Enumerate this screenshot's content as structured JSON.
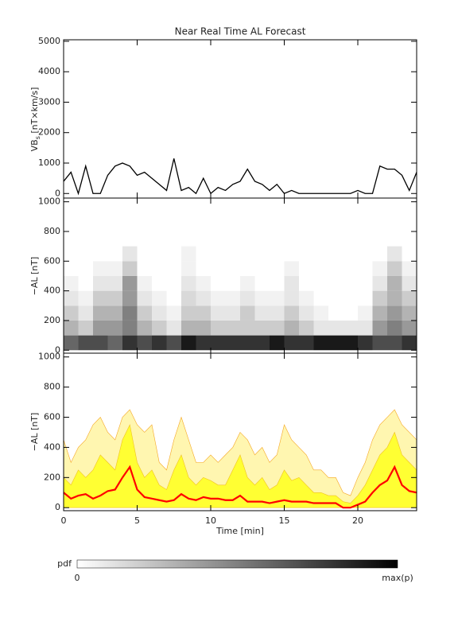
{
  "chart_data": [
    {
      "type": "line",
      "title": "Near Real Time AL Forecast",
      "ylabel_main": "VB",
      "ylabel_sub": "s",
      "ylabel_unit": "[nT×km/s]",
      "xlim": [
        0,
        24
      ],
      "xticks": [
        0,
        5,
        10,
        15,
        20
      ],
      "ylim": [
        -150,
        5050
      ],
      "yticks": [
        0,
        1000,
        2000,
        3000,
        4000,
        5000
      ],
      "color": "#000000",
      "x": [
        0,
        0.5,
        1,
        1.5,
        2,
        2.5,
        3,
        3.5,
        4,
        4.5,
        5,
        5.5,
        6,
        6.5,
        7,
        7.5,
        8,
        8.5,
        9,
        9.5,
        10,
        10.5,
        11,
        11.5,
        12,
        12.5,
        13,
        13.5,
        14,
        14.5,
        15,
        15.5,
        16,
        16.5,
        17,
        17.5,
        18,
        18.5,
        19,
        19.5,
        20,
        20.5,
        21,
        21.5,
        22,
        22.5,
        23,
        23.5,
        24
      ],
      "values": [
        400,
        700,
        0,
        900,
        0,
        0,
        600,
        900,
        1000,
        900,
        600,
        700,
        500,
        300,
        100,
        1150,
        100,
        200,
        0,
        500,
        0,
        200,
        100,
        300,
        400,
        800,
        400,
        300,
        100,
        300,
        0,
        100,
        0,
        0,
        0,
        0,
        0,
        0,
        0,
        0,
        100,
        0,
        0,
        900,
        800,
        800,
        600,
        100,
        700
      ]
    },
    {
      "type": "heatmap",
      "ylabel": "−AL [nT]",
      "xlim": [
        0,
        24
      ],
      "xticks": [
        0,
        5,
        10,
        15,
        20
      ],
      "ylim": [
        -20,
        1025
      ],
      "yticks": [
        0,
        200,
        400,
        600,
        800,
        1000
      ],
      "x_bins": [
        0,
        1,
        2,
        3,
        4,
        5,
        6,
        7,
        8,
        9,
        10,
        11,
        12,
        13,
        14,
        15,
        16,
        17,
        18,
        19,
        20,
        21,
        22,
        23,
        24
      ],
      "y_bins": [
        0,
        100,
        200,
        300,
        400,
        500,
        600,
        700
      ],
      "z": [
        [
          0.6,
          0.7,
          0.7,
          0.6,
          0.8,
          0.7,
          0.8,
          0.7,
          0.9,
          0.8,
          0.8,
          0.8,
          0.8,
          0.8,
          0.9,
          0.8,
          0.8,
          0.9,
          0.9,
          0.9,
          0.8,
          0.7,
          0.7,
          0.8
        ],
        [
          0.3,
          0.2,
          0.4,
          0.4,
          0.5,
          0.3,
          0.2,
          0.1,
          0.3,
          0.3,
          0.2,
          0.2,
          0.2,
          0.2,
          0.2,
          0.3,
          0.2,
          0.1,
          0.1,
          0.1,
          0.1,
          0.4,
          0.5,
          0.4
        ],
        [
          0.2,
          0.1,
          0.3,
          0.3,
          0.5,
          0.2,
          0.1,
          0.05,
          0.2,
          0.2,
          0.1,
          0.1,
          0.2,
          0.1,
          0.1,
          0.2,
          0.1,
          0.05,
          0,
          0,
          0.05,
          0.3,
          0.4,
          0.3
        ],
        [
          0.1,
          0.05,
          0.2,
          0.2,
          0.4,
          0.1,
          0.05,
          0,
          0.15,
          0.1,
          0.05,
          0.05,
          0.1,
          0.05,
          0.05,
          0.1,
          0.05,
          0,
          0,
          0,
          0,
          0.2,
          0.3,
          0.2
        ],
        [
          0.05,
          0,
          0.1,
          0.1,
          0.4,
          0.05,
          0,
          0,
          0.1,
          0.05,
          0,
          0,
          0.05,
          0,
          0,
          0.1,
          0,
          0,
          0,
          0,
          0,
          0.1,
          0.3,
          0.1
        ],
        [
          0,
          0,
          0.05,
          0.05,
          0.2,
          0,
          0,
          0,
          0.05,
          0,
          0,
          0,
          0,
          0,
          0,
          0.05,
          0,
          0,
          0,
          0,
          0,
          0.05,
          0.2,
          0.05
        ],
        [
          0,
          0,
          0,
          0,
          0.1,
          0,
          0,
          0,
          0.05,
          0,
          0,
          0,
          0,
          0,
          0,
          0,
          0,
          0,
          0,
          0,
          0,
          0,
          0.1,
          0
        ]
      ]
    },
    {
      "type": "band-line",
      "ylabel": "−AL [nT]",
      "xlabel": "Time [min]",
      "xlim": [
        0,
        24
      ],
      "xticks": [
        0,
        5,
        10,
        15,
        20
      ],
      "ylim": [
        -20,
        1025
      ],
      "yticks": [
        0,
        200,
        400,
        600,
        800,
        1000
      ],
      "x": [
        0,
        0.5,
        1,
        1.5,
        2,
        2.5,
        3,
        3.5,
        4,
        4.5,
        5,
        5.5,
        6,
        6.5,
        7,
        7.5,
        8,
        8.5,
        9,
        9.5,
        10,
        10.5,
        11,
        11.5,
        12,
        12.5,
        13,
        13.5,
        14,
        14.5,
        15,
        15.5,
        16,
        16.5,
        17,
        17.5,
        18,
        18.5,
        19,
        19.5,
        20,
        20.5,
        21,
        21.5,
        22,
        22.5,
        23,
        23.5,
        24
      ],
      "series": [
        {
          "color": "#fff6b0",
          "stroke": "#f5a623",
          "values": [
            450,
            300,
            400,
            450,
            550,
            600,
            500,
            450,
            600,
            650,
            550,
            500,
            550,
            300,
            250,
            450,
            600,
            450,
            300,
            300,
            350,
            300,
            350,
            400,
            500,
            450,
            350,
            400,
            300,
            350,
            550,
            450,
            400,
            350,
            250,
            250,
            200,
            200,
            100,
            80,
            200,
            300,
            450,
            550,
            600,
            650,
            550,
            500,
            450
          ]
        },
        {
          "color": "#ffff33",
          "stroke": "#f0c020",
          "values": [
            200,
            150,
            250,
            200,
            250,
            350,
            300,
            250,
            450,
            550,
            300,
            200,
            250,
            150,
            120,
            250,
            350,
            200,
            150,
            200,
            180,
            150,
            150,
            250,
            350,
            200,
            150,
            200,
            120,
            150,
            250,
            180,
            200,
            150,
            100,
            100,
            80,
            80,
            40,
            30,
            80,
            150,
            250,
            350,
            400,
            500,
            350,
            300,
            250
          ]
        },
        {
          "color": "#ff0000",
          "values": [
            100,
            60,
            80,
            90,
            60,
            80,
            110,
            120,
            200,
            270,
            120,
            70,
            60,
            50,
            40,
            50,
            90,
            60,
            50,
            70,
            60,
            60,
            50,
            50,
            80,
            40,
            40,
            40,
            30,
            40,
            50,
            40,
            40,
            40,
            30,
            30,
            30,
            30,
            0,
            0,
            20,
            40,
            100,
            150,
            180,
            270,
            150,
            110,
            100
          ]
        }
      ]
    }
  ],
  "colorbar": {
    "label": "pdf",
    "min_label": "0",
    "max_label": "max(p)"
  }
}
